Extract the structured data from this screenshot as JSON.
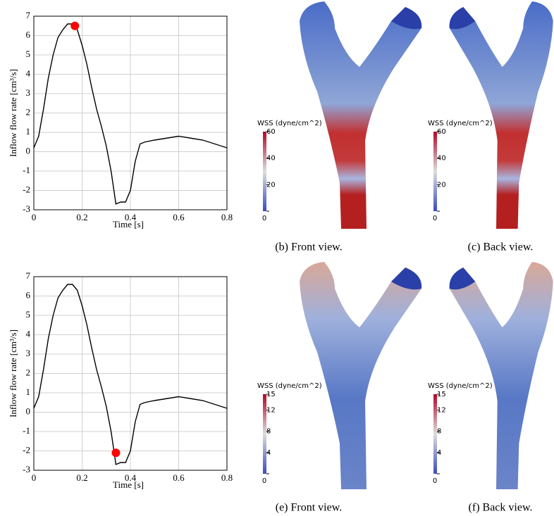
{
  "chart_data": [
    {
      "type": "line",
      "xlabel": "Time [s]",
      "ylabel": "Inflow flow rate [cm³/s]",
      "x": [
        0,
        0.02,
        0.04,
        0.06,
        0.08,
        0.1,
        0.12,
        0.14,
        0.16,
        0.18,
        0.2,
        0.22,
        0.24,
        0.26,
        0.28,
        0.3,
        0.32,
        0.34,
        0.36,
        0.38,
        0.4,
        0.42,
        0.44,
        0.46,
        0.5,
        0.55,
        0.6,
        0.65,
        0.7,
        0.75,
        0.8
      ],
      "values": [
        0.2,
        0.8,
        2.2,
        3.8,
        5.0,
        5.9,
        6.3,
        6.6,
        6.6,
        6.3,
        5.5,
        4.5,
        3.3,
        2.2,
        1.3,
        0.3,
        -1.0,
        -2.7,
        -2.6,
        -2.6,
        -2.0,
        -0.5,
        0.4,
        0.5,
        0.6,
        0.7,
        0.8,
        0.7,
        0.6,
        0.4,
        0.2
      ],
      "color": "#000000",
      "highlight": {
        "x": 0.17,
        "y": 6.5,
        "color": "#ff0000"
      },
      "xlim": [
        0,
        0.8
      ],
      "xticks": [
        0,
        0.2,
        0.4,
        0.6,
        0.8
      ],
      "ylim": [
        -3,
        7
      ],
      "yticks": [
        -3,
        -2,
        -1,
        0,
        1,
        2,
        3,
        4,
        5,
        6,
        7
      ],
      "grid": true
    },
    {
      "type": "line",
      "xlabel": "Time [s]",
      "ylabel": "Inflow flow rate [cm³/s]",
      "x": [
        0,
        0.02,
        0.04,
        0.06,
        0.08,
        0.1,
        0.12,
        0.14,
        0.16,
        0.18,
        0.2,
        0.22,
        0.24,
        0.26,
        0.28,
        0.3,
        0.32,
        0.34,
        0.36,
        0.38,
        0.4,
        0.42,
        0.44,
        0.46,
        0.5,
        0.55,
        0.6,
        0.65,
        0.7,
        0.75,
        0.8
      ],
      "values": [
        0.2,
        0.8,
        2.2,
        3.8,
        5.0,
        5.9,
        6.3,
        6.6,
        6.6,
        6.3,
        5.5,
        4.5,
        3.3,
        2.2,
        1.3,
        0.3,
        -1.0,
        -2.7,
        -2.6,
        -2.6,
        -2.0,
        -0.5,
        0.4,
        0.5,
        0.6,
        0.7,
        0.8,
        0.7,
        0.6,
        0.4,
        0.2
      ],
      "color": "#000000",
      "highlight": {
        "x": 0.34,
        "y": -2.1,
        "color": "#ff0000"
      },
      "xlim": [
        0,
        0.8
      ],
      "xticks": [
        0,
        0.2,
        0.4,
        0.6,
        0.8
      ],
      "ylim": [
        -3,
        7
      ],
      "yticks": [
        -3,
        -2,
        -1,
        0,
        1,
        2,
        3,
        4,
        5,
        6,
        7
      ],
      "grid": true
    }
  ],
  "panels": [
    {
      "caption": "(b) Front view.",
      "colorbar": {
        "title": "WSS (dyne/cm^2)",
        "lim": [
          0,
          60
        ],
        "ticks": [
          0,
          20,
          40,
          60
        ]
      }
    },
    {
      "caption": "(c) Back view.",
      "colorbar": {
        "title": "WSS (dyne/cm^2)",
        "lim": [
          0,
          60
        ],
        "ticks": [
          0,
          20,
          40,
          60
        ]
      }
    },
    {
      "caption": "(e) Front view.",
      "colorbar": {
        "title": "WSS (dyne/cm^2)",
        "lim": [
          0,
          15
        ],
        "ticks": [
          0,
          4,
          8,
          12,
          15
        ]
      }
    },
    {
      "caption": "(f) Back view.",
      "colorbar": {
        "title": "WSS (dyne/cm^2)",
        "lim": [
          0,
          15
        ],
        "ticks": [
          0,
          4,
          8,
          12,
          15
        ]
      }
    }
  ]
}
